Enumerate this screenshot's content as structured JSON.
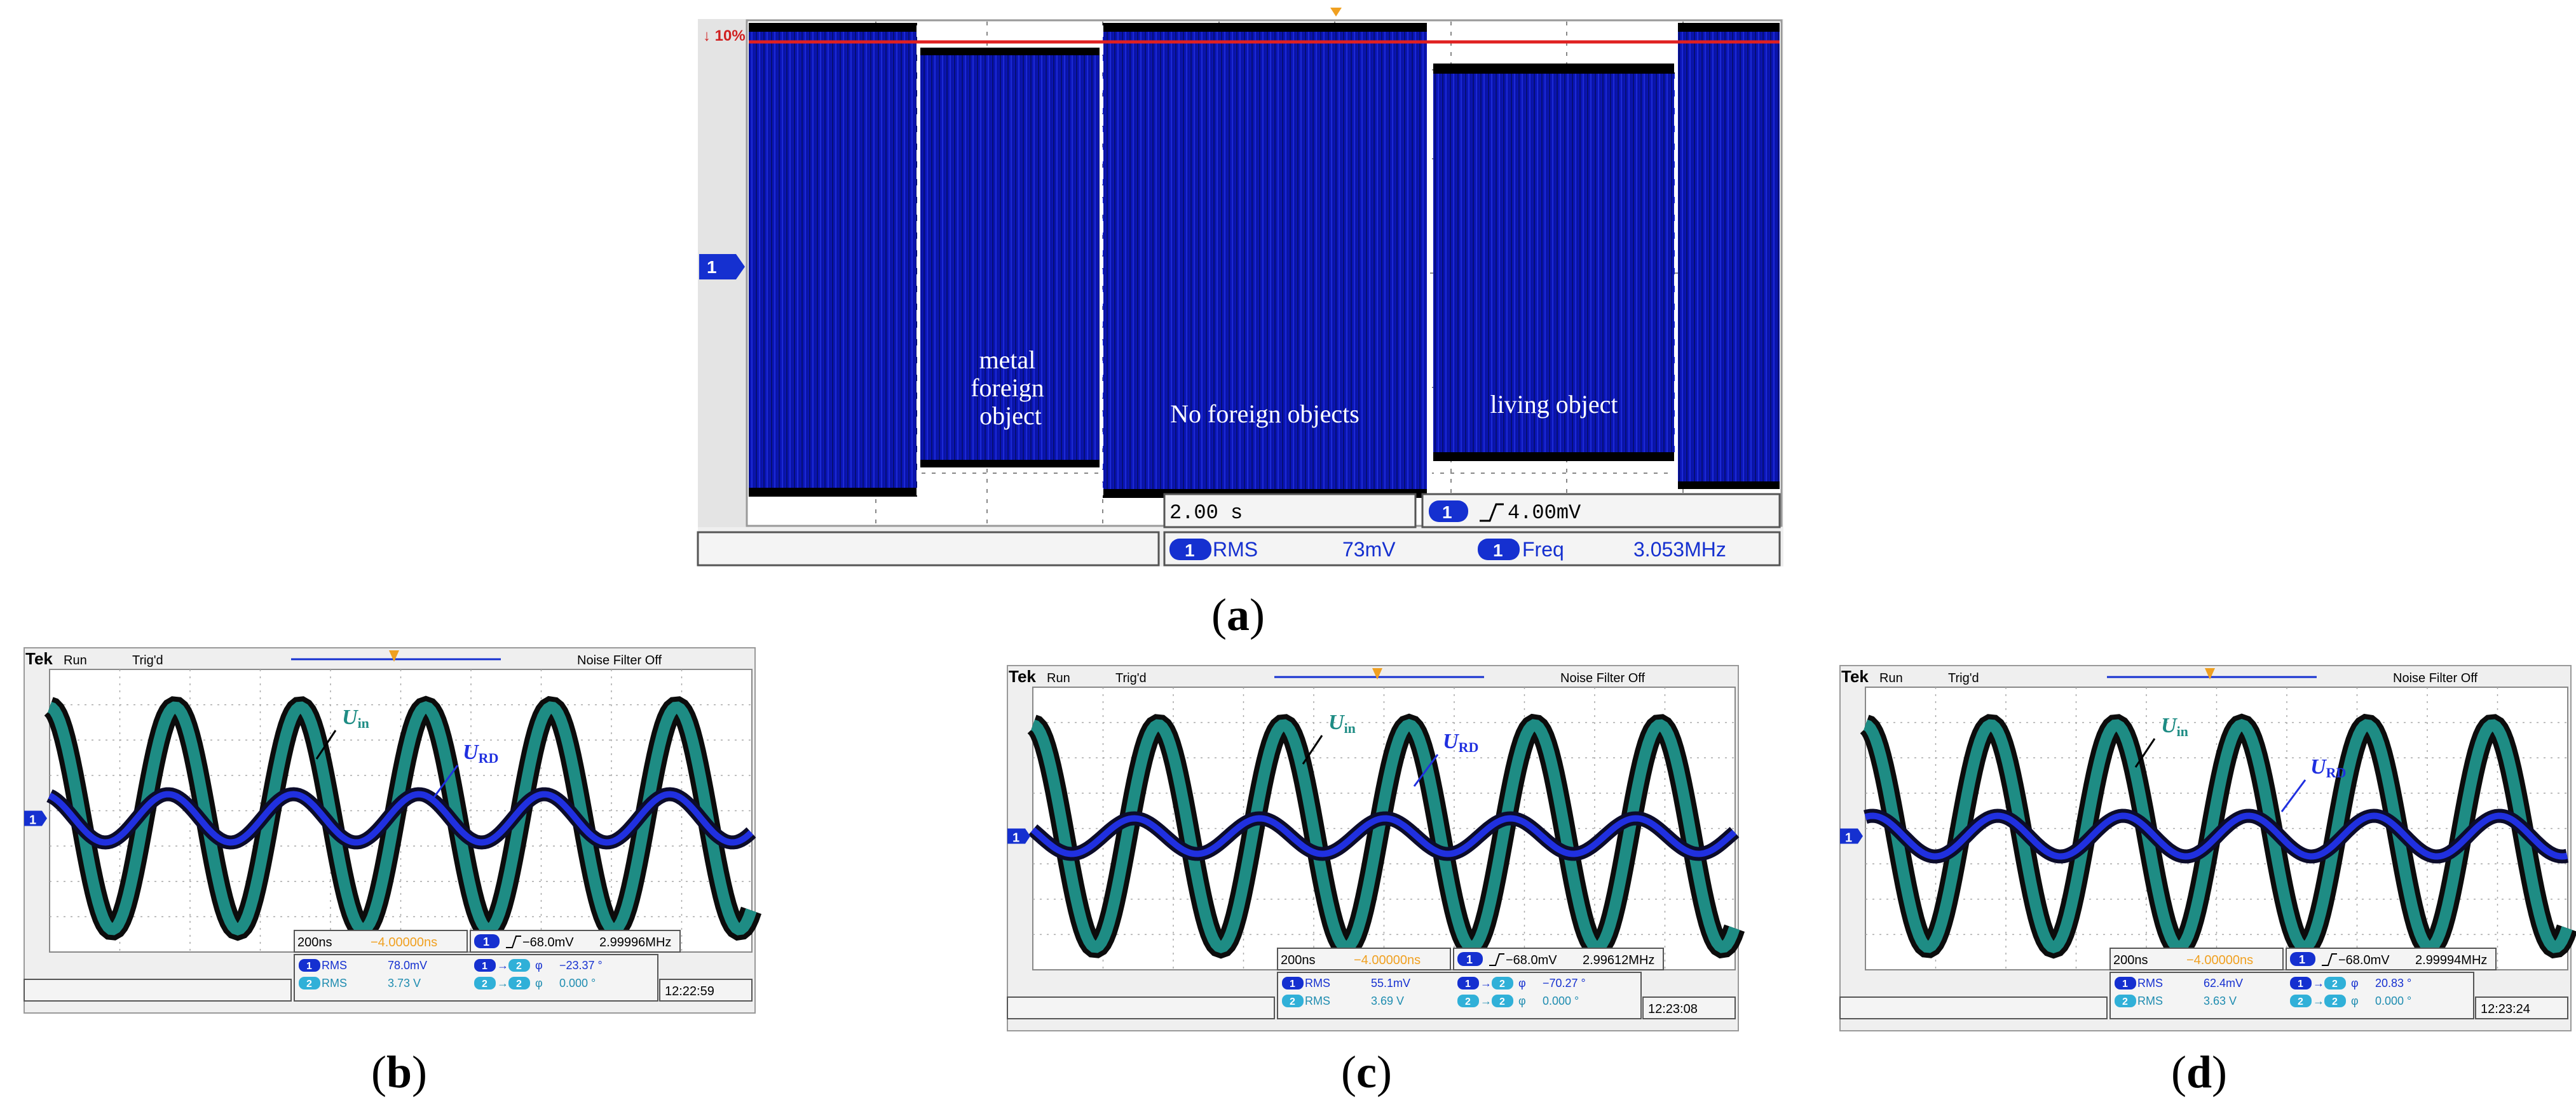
{
  "figure_a": {
    "trigger_level": "10%",
    "channel_marker": "1",
    "labels": {
      "metal": [
        "metal",
        "foreign",
        "object"
      ],
      "none": "No foreign objects",
      "living": "living object"
    },
    "timebase": "2.00 s",
    "trigger_channel": "1",
    "trigger_value": "4.00mV",
    "measure1_channel": "1",
    "measure1_name": "RMS",
    "measure1_value": "73mV",
    "measure2_channel": "1",
    "measure2_name": "Freq",
    "measure2_value": "3.053MHz",
    "caption": "(a)"
  },
  "scopes": [
    {
      "brand": "Tek",
      "run": "Run",
      "trig": "Trig'd",
      "filter": "Noise Filter Off",
      "label_in_main": "U",
      "label_in_sub": "in",
      "label_rd_main": "U",
      "label_rd_sub": "RD",
      "marker": "1",
      "timebase": "200ns",
      "delay": "−4.00000ns",
      "trig_ch": "1",
      "trig_level": "−68.0mV",
      "freq": "2.99996MHz",
      "ch1": "1",
      "ch1_name": "RMS",
      "ch1_rms": "78.0mV",
      "ch2": "2",
      "ch2_name": "RMS",
      "ch2_rms": "3.73 V",
      "phase1_from": "1",
      "phase1_to": "2",
      "phase1_sym": "φ",
      "phase1": "−23.37 °",
      "phase2_from": "2",
      "phase2_to": "2",
      "phase2_sym": "φ",
      "phase2": "0.000 °",
      "time": "12:22:59",
      "caption": "(b)"
    },
    {
      "brand": "Tek",
      "run": "Run",
      "trig": "Trig'd",
      "filter": "Noise Filter Off",
      "label_in_main": "U",
      "label_in_sub": "in",
      "label_rd_main": "U",
      "label_rd_sub": "RD",
      "marker": "1",
      "timebase": "200ns",
      "delay": "−4.00000ns",
      "trig_ch": "1",
      "trig_level": "−68.0mV",
      "freq": "2.99612MHz",
      "ch1": "1",
      "ch1_name": "RMS",
      "ch1_rms": "55.1mV",
      "ch2": "2",
      "ch2_name": "RMS",
      "ch2_rms": "3.69 V",
      "phase1_from": "1",
      "phase1_to": "2",
      "phase1_sym": "φ",
      "phase1": "−70.27 °",
      "phase2_from": "2",
      "phase2_to": "2",
      "phase2_sym": "φ",
      "phase2": "0.000 °",
      "time": "12:23:08",
      "caption": "(c)"
    },
    {
      "brand": "Tek",
      "run": "Run",
      "trig": "Trig'd",
      "filter": "Noise Filter Off",
      "label_in_main": "U",
      "label_in_sub": "in",
      "label_rd_main": "U",
      "label_rd_sub": "RD",
      "marker": "1",
      "timebase": "200ns",
      "delay": "−4.00000ns",
      "trig_ch": "1",
      "trig_level": "−68.0mV",
      "freq": "2.99994MHz",
      "ch1": "1",
      "ch1_name": "RMS",
      "ch1_rms": "62.4mV",
      "ch2": "2",
      "ch2_name": "RMS",
      "ch2_rms": "3.63 V",
      "phase1_from": "1",
      "phase1_to": "2",
      "phase1_sym": "φ",
      "phase1": "20.83 °",
      "phase2_from": "2",
      "phase2_to": "2",
      "phase2_sym": "φ",
      "phase2": "0.000 °",
      "time": "12:23:24",
      "caption": "(d)"
    }
  ]
}
